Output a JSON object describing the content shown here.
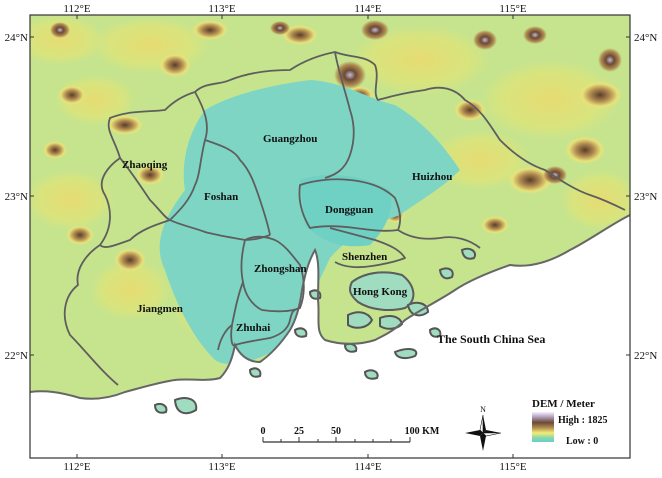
{
  "map": {
    "lon_labels": [
      "112°E",
      "113°E",
      "114°E",
      "115°E"
    ],
    "lat_labels": [
      "24°N",
      "23°N",
      "22°N"
    ],
    "cities": [
      {
        "key": "zhaoqing",
        "label": "Zhaoqing"
      },
      {
        "key": "guangzhou",
        "label": "Guangzhou"
      },
      {
        "key": "huizhou",
        "label": "Huizhou"
      },
      {
        "key": "foshan",
        "label": "Foshan"
      },
      {
        "key": "dongguan",
        "label": "Dongguan"
      },
      {
        "key": "shenzhen",
        "label": "Shenzhen"
      },
      {
        "key": "zhongshan",
        "label": "Zhongshan"
      },
      {
        "key": "hongkong",
        "label": "Hong Kong"
      },
      {
        "key": "jiangmen",
        "label": "Jiangmen"
      },
      {
        "key": "zhuhai",
        "label": "Zhuhai"
      }
    ],
    "sea_label": "The South China Sea"
  },
  "scale_bar": {
    "labels": [
      "0",
      "25",
      "50",
      "100 KM"
    ]
  },
  "north_arrow": {
    "label": "N"
  },
  "legend": {
    "title": "DEM / Meter",
    "high_label": "High : 1825",
    "low_label": "Low : 0",
    "colors": [
      "#f7f0f8",
      "#b7a6c8",
      "#6a4a35",
      "#b08a50",
      "#f2ee78",
      "#8fd7a6",
      "#62d0d0"
    ]
  }
}
